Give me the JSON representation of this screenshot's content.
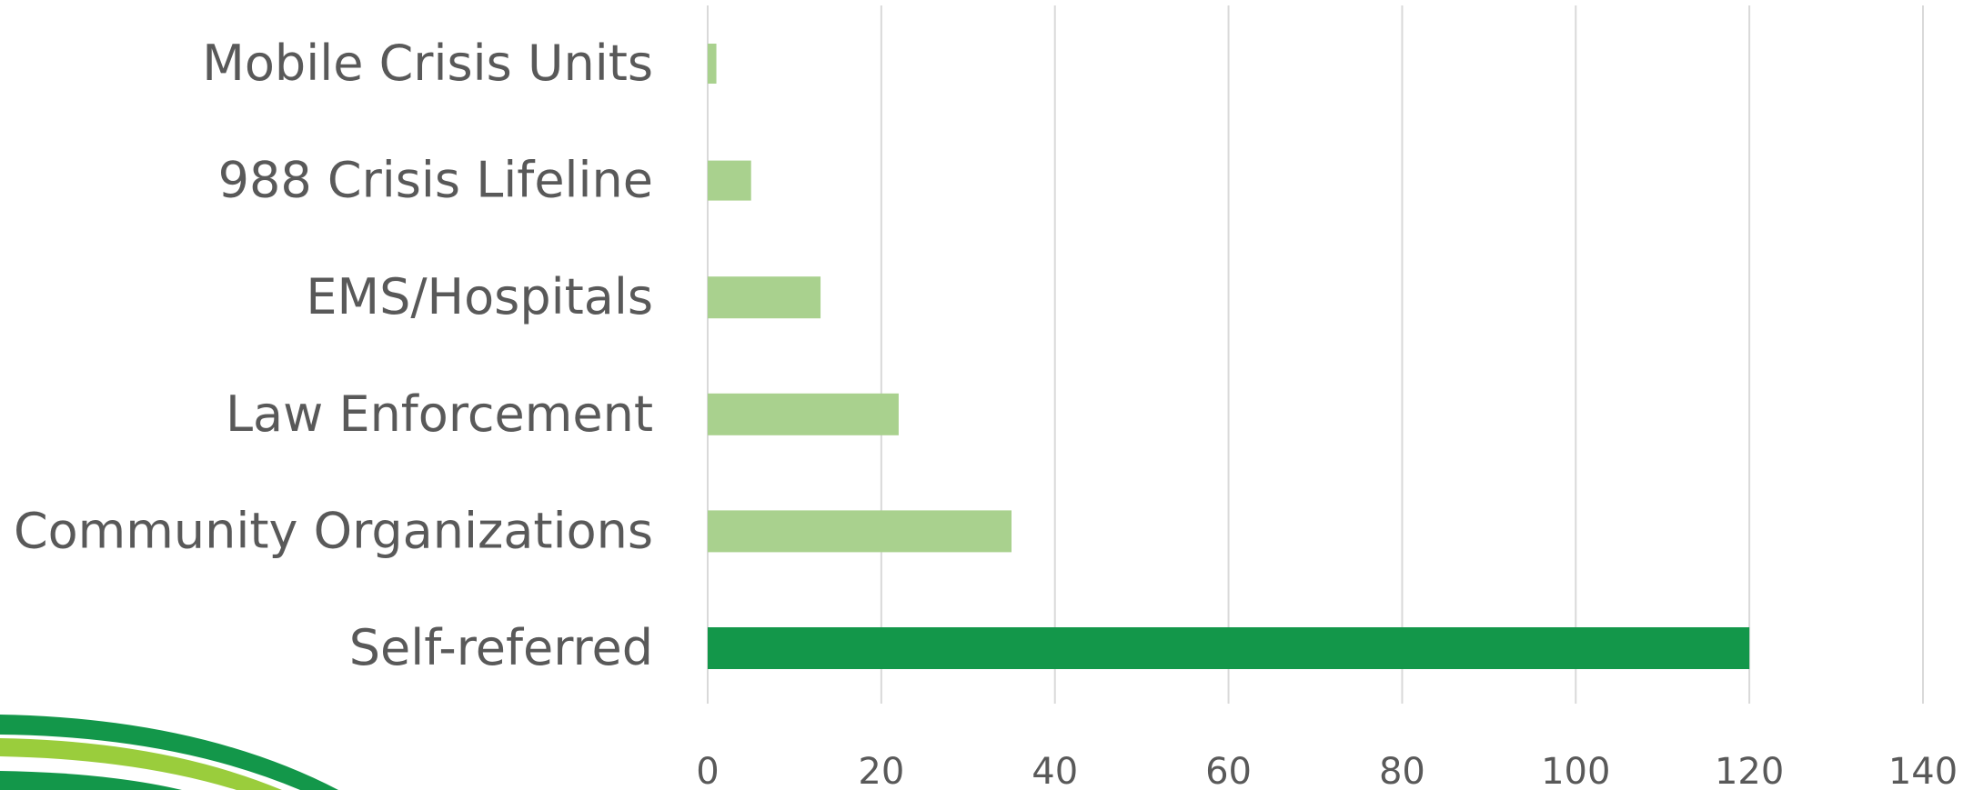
{
  "chart_data": {
    "type": "bar",
    "orientation": "horizontal",
    "title": "",
    "xlabel": "",
    "ylabel": "",
    "categories": [
      "Mobile Crisis Units",
      "988 Crisis Lifeline",
      "EMS/Hospitals",
      "Law Enforcement",
      "Community Organizations",
      "Self-referred"
    ],
    "values": [
      1,
      5,
      13,
      22,
      35,
      120
    ],
    "bar_colors": [
      "#a9d18e",
      "#a9d18e",
      "#a9d18e",
      "#a9d18e",
      "#a9d18e",
      "#13974a"
    ],
    "xlim": [
      0,
      140
    ],
    "xticks": [
      0,
      20,
      40,
      60,
      80,
      100,
      120,
      140
    ],
    "xtick_labels": [
      "0",
      "20",
      "40",
      "60",
      "80",
      "100",
      "120",
      "140"
    ],
    "grid": "vertical",
    "legend": "none"
  },
  "decoration": {
    "name": "corner-swoosh",
    "colors": [
      "#13974a",
      "#9acd3c"
    ]
  }
}
